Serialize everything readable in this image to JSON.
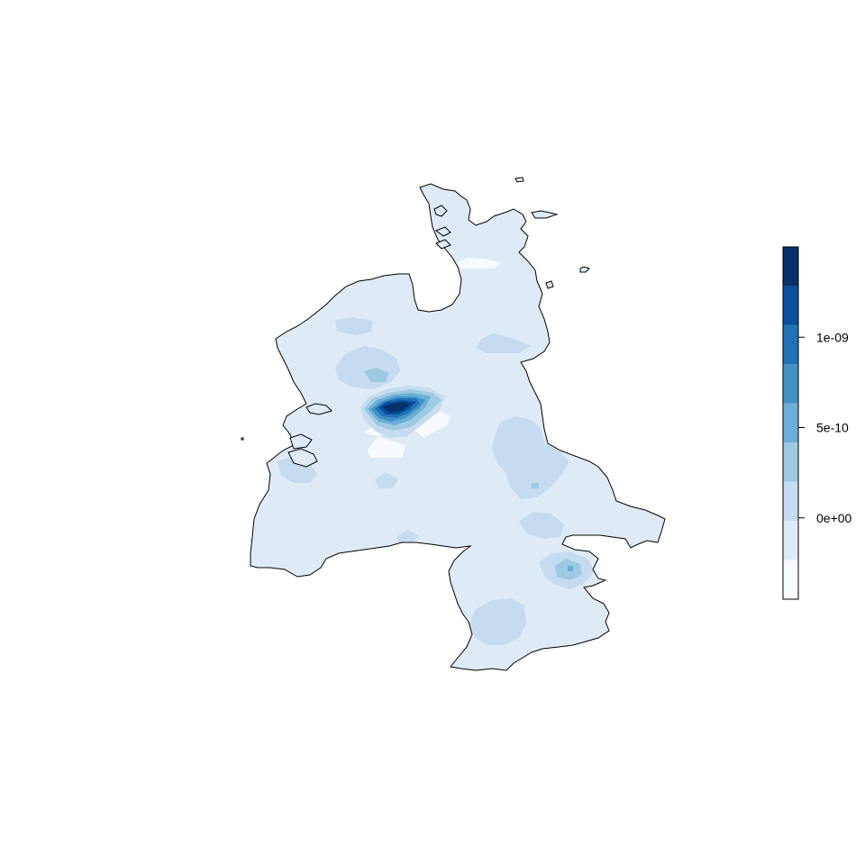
{
  "legend": {
    "tick_labels": [
      "1e-09",
      "5e-10",
      "0e+00"
    ],
    "tick_values": [
      1e-09,
      5e-10,
      0
    ],
    "range": [
      -4.5e-10,
      1.5e-09
    ],
    "classes": 9,
    "colors": [
      "#F7FBFF",
      "#DEEBF7",
      "#C6DBEF",
      "#9ECAE1",
      "#6BAED6",
      "#4292C6",
      "#2171B5",
      "#08519C",
      "#08306B"
    ]
  },
  "map": {
    "region_fill": "#DEEBF7",
    "outline_color": "#000000"
  }
}
